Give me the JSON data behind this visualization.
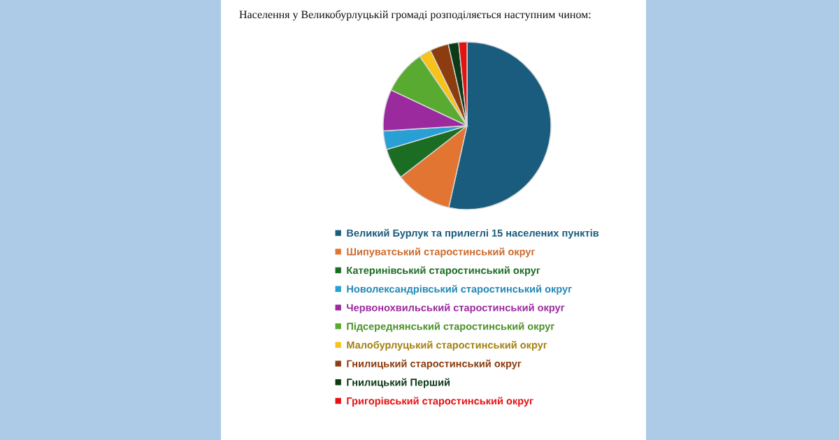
{
  "chart_data": {
    "type": "pie",
    "title": "Населення у Великобурлуцькій громаді розподіляється наступним чином:",
    "categories": [
      "Великий Бурлук та прилеглі 15 населених пунктів",
      "Шипуватський старостинський округ",
      "Катеринівський старостинський округ",
      "Новолександрівський старостинський округ",
      "Червонохвильський старостинський округ",
      "Підсереднянський старостинський округ",
      "Малобурлуцький старостинський округ",
      "Гнилицький старостинський округ",
      "Гнилицький Перший",
      "Григорівський старостинський округ"
    ],
    "values": [
      53.5,
      11.0,
      5.9,
      3.6,
      8.0,
      8.5,
      2.3,
      3.6,
      2.0,
      1.6
    ],
    "colors": [
      "#195c7e",
      "#e27532",
      "#1b6d24",
      "#28a0d6",
      "#9b2a9f",
      "#58aa30",
      "#f7c21a",
      "#8c3d10",
      "#0e3b17",
      "#e51212"
    ],
    "legend": "bottom"
  }
}
